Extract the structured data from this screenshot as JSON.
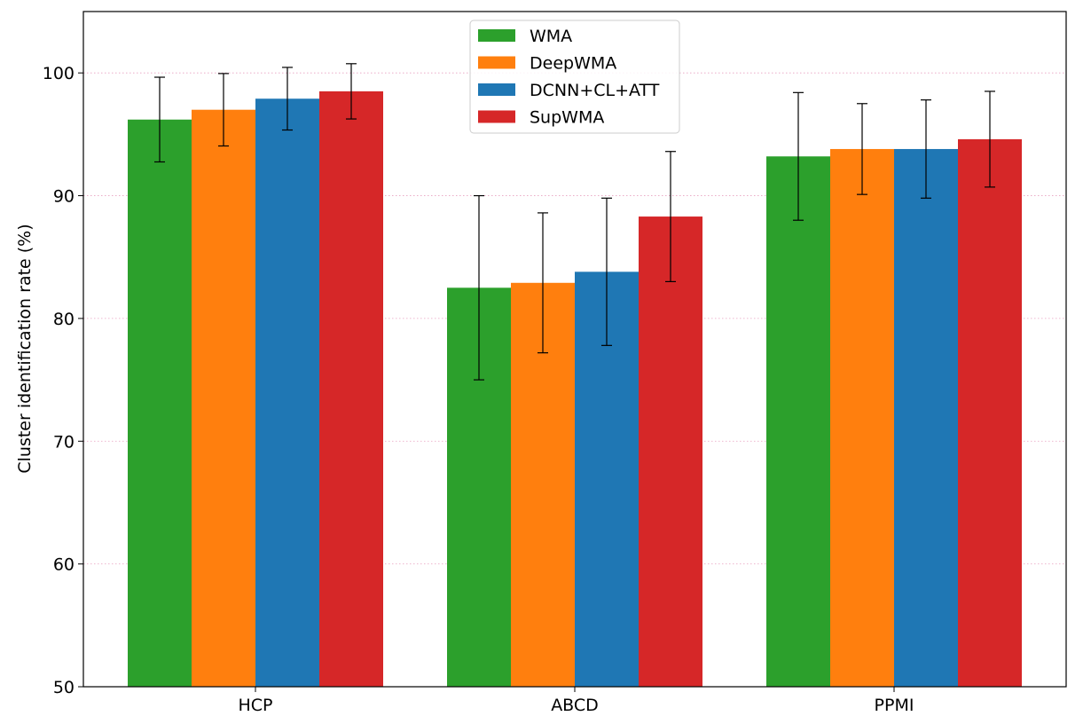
{
  "chart_data": {
    "type": "bar",
    "title": "",
    "xlabel": "",
    "ylabel": "Cluster identification rate (%)",
    "ylim": [
      50,
      105
    ],
    "yticks": [
      50,
      60,
      70,
      80,
      90,
      100
    ],
    "grid": "horizontal dotted",
    "legend_position": "top-center",
    "categories": [
      "HCP",
      "ABCD",
      "PPMI"
    ],
    "series": [
      {
        "name": "WMA",
        "color": "#2ca02c",
        "values": [
          96.2,
          82.5,
          93.2
        ],
        "errors": [
          3.45,
          7.5,
          5.2
        ]
      },
      {
        "name": "DeepWMA",
        "color": "#ff7f0e",
        "values": [
          97.0,
          82.9,
          93.8
        ],
        "errors": [
          2.95,
          5.7,
          3.7
        ]
      },
      {
        "name": "DCNN+CL+ATT",
        "color": "#1f77b4",
        "values": [
          97.9,
          83.8,
          93.8
        ],
        "errors": [
          2.55,
          6.0,
          4.0
        ]
      },
      {
        "name": "SupWMA",
        "color": "#d62728",
        "values": [
          98.5,
          88.3,
          94.6
        ],
        "errors": [
          2.25,
          5.3,
          3.9
        ]
      }
    ]
  }
}
